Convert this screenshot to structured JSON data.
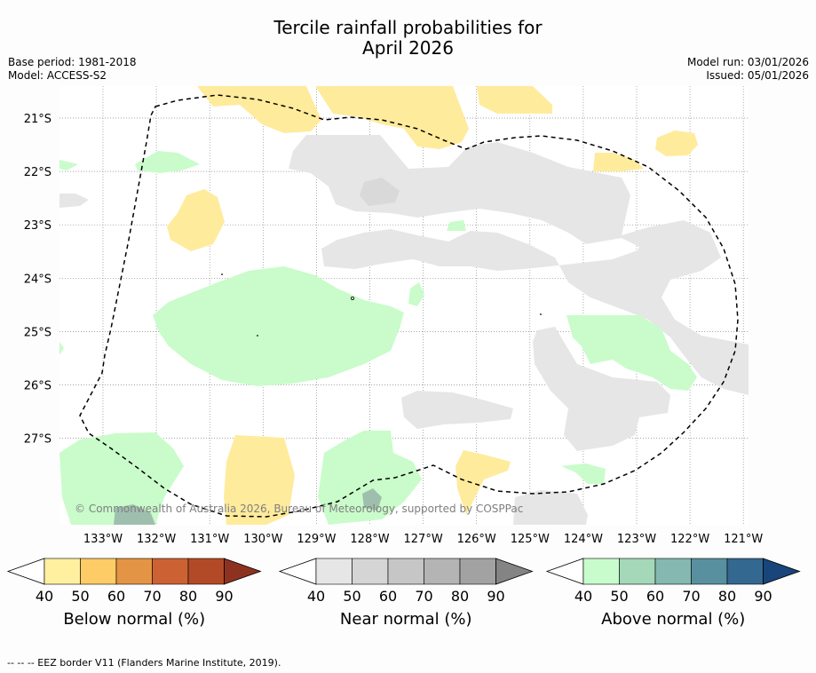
{
  "title_line1": "Tercile rainfall probabilities for",
  "title_line2": "April 2026",
  "base_period": "Base period: 1981-2018",
  "model": "Model: ACCESS-S2",
  "model_run": "Model run: 03/01/2026",
  "issued": "Issued: 05/01/2026",
  "copyright": "© Commonwealth of Australia 2026, Bureau of Meteorology, supported by COSPPac",
  "latitudes": [
    "21°S",
    "22°S",
    "23°S",
    "24°S",
    "25°S",
    "26°S",
    "27°S"
  ],
  "longitudes": [
    "133°W",
    "132°W",
    "131°W",
    "130°W",
    "129°W",
    "128°W",
    "127°W",
    "126°W",
    "125°W",
    "124°W",
    "123°W",
    "122°W",
    "121°W"
  ],
  "colorbars": [
    {
      "title": "Below normal (%)",
      "ticks": [
        "40",
        "50",
        "60",
        "70",
        "80",
        "90"
      ],
      "colors": [
        "#fff0a0",
        "#fdcc66",
        "#e39444",
        "#cc6233",
        "#b24a28",
        "#8e3220"
      ]
    },
    {
      "title": "Near normal (%)",
      "ticks": [
        "40",
        "50",
        "60",
        "70",
        "80",
        "90"
      ],
      "colors": [
        "#e6e6e6",
        "#d5d5d5",
        "#c6c6c6",
        "#b4b4b4",
        "#a2a2a2",
        "#848484"
      ]
    },
    {
      "title": "Above normal (%)",
      "ticks": [
        "40",
        "50",
        "60",
        "70",
        "80",
        "90"
      ],
      "colors": [
        "#c8fccc",
        "#a4d8b8",
        "#84b8b0",
        "#5890a0",
        "#336890",
        "#18457a"
      ]
    }
  ],
  "footer": "--  --  -- EEZ border V11 (Flanders Marine Institute, 2019).",
  "colors": {
    "below": "#ffeb9c",
    "near": "#e6e6e6",
    "above": "#c9fcca",
    "above_dark": "#9fbfae"
  }
}
